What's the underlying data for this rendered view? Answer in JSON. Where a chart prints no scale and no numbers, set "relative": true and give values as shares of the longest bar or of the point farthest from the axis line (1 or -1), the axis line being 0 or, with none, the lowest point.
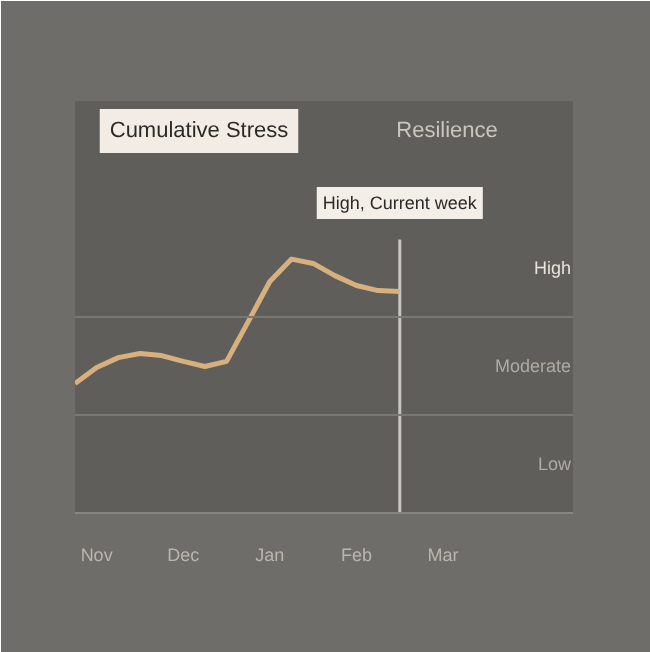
{
  "chart_data": {
    "type": "line",
    "relative": true,
    "annotations": [
      "Cumulative Stress",
      "Resilience",
      "High",
      "Moderate",
      "Low"
    ],
    "categories": [
      null,
      "Nov",
      null,
      null,
      null,
      "Dec",
      null,
      null,
      null,
      "Jan",
      null,
      null,
      null,
      "Feb",
      null,
      null,
      null,
      "Mar",
      null,
      null,
      null,
      null,
      null,
      null
    ],
    "series": [
      {
        "color": "#d8b07e",
        "values": [
          0.51,
          0.573,
          0.612,
          0.628,
          0.62,
          0.597,
          0.577,
          0.597,
          0.754,
          0.912,
          1,
          0.983,
          0.935,
          0.896,
          0.876,
          0.872,
          null,
          null,
          null,
          null,
          null,
          null,
          null,
          null
        ]
      }
    ],
    "ref_lines": [
      {
        "axis": "y",
        "value": 0.386,
        "label": null,
        "color": "#797873"
      },
      {
        "axis": "y",
        "value": 0.772,
        "label": null,
        "color": "#797873"
      },
      {
        "axis": "x",
        "label": "High, Current week",
        "color": "#c9c6c0"
      }
    ],
    "marker": "none",
    "line_style": "solid"
  }
}
